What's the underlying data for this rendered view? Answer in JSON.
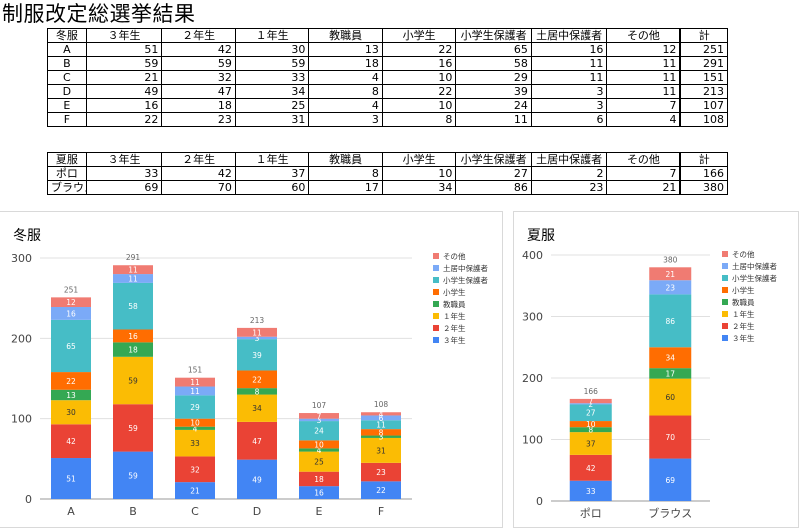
{
  "page_title": "制服改定総選挙結果",
  "winter_table": {
    "headers": [
      "冬服",
      "３年生",
      "２年生",
      "１年生",
      "教職員",
      "小学生",
      "小学生保護者",
      "土居中保護者",
      "その他",
      "計"
    ],
    "rows": [
      [
        "A",
        "51",
        "42",
        "30",
        "13",
        "22",
        "65",
        "16",
        "12",
        "251"
      ],
      [
        "B",
        "59",
        "59",
        "59",
        "18",
        "16",
        "58",
        "11",
        "11",
        "291"
      ],
      [
        "C",
        "21",
        "32",
        "33",
        "4",
        "10",
        "29",
        "11",
        "11",
        "151"
      ],
      [
        "D",
        "49",
        "47",
        "34",
        "8",
        "22",
        "39",
        "3",
        "11",
        "213"
      ],
      [
        "E",
        "16",
        "18",
        "25",
        "4",
        "10",
        "24",
        "3",
        "7",
        "107"
      ],
      [
        "F",
        "22",
        "23",
        "31",
        "3",
        "8",
        "11",
        "6",
        "4",
        "108"
      ]
    ]
  },
  "summer_table": {
    "headers": [
      "夏服",
      "３年生",
      "２年生",
      "１年生",
      "教職員",
      "小学生",
      "小学生保護者",
      "土居中保護者",
      "その他",
      "計"
    ],
    "rows": [
      [
        "ポロ",
        "33",
        "42",
        "37",
        "8",
        "10",
        "27",
        "2",
        "7",
        "166"
      ],
      [
        "ブラウス",
        "69",
        "70",
        "60",
        "17",
        "34",
        "86",
        "23",
        "21",
        "380"
      ]
    ]
  },
  "colors": {
    "series": [
      "#4285f4",
      "#ea4335",
      "#fbbc04",
      "#34a853",
      "#ff6d01",
      "#46bdc6",
      "#7baaf7",
      "#f07b72"
    ],
    "gridline": "#e0e0e0",
    "axis_text": "#444444",
    "total_text": "#666666"
  },
  "chart_data": [
    {
      "type": "bar",
      "stacked": true,
      "title": "冬服",
      "categories": [
        "A",
        "B",
        "C",
        "D",
        "E",
        "F"
      ],
      "ylim": [
        0,
        300
      ],
      "yticks": [
        0,
        100,
        200,
        300
      ],
      "grid": true,
      "legend_position": "right",
      "series": [
        {
          "name": "３年生",
          "values": [
            51,
            59,
            21,
            49,
            16,
            22
          ]
        },
        {
          "name": "２年生",
          "values": [
            42,
            59,
            32,
            47,
            18,
            23
          ]
        },
        {
          "name": "１年生",
          "values": [
            30,
            59,
            33,
            34,
            25,
            31
          ]
        },
        {
          "name": "教職員",
          "values": [
            13,
            18,
            4,
            8,
            4,
            3
          ]
        },
        {
          "name": "小学生",
          "values": [
            22,
            16,
            10,
            22,
            10,
            8
          ]
        },
        {
          "name": "小学生保護者",
          "values": [
            65,
            58,
            29,
            39,
            24,
            11
          ]
        },
        {
          "name": "土居中保護者",
          "values": [
            16,
            11,
            11,
            3,
            3,
            6
          ]
        },
        {
          "name": "その他",
          "values": [
            12,
            11,
            11,
            11,
            7,
            4
          ]
        }
      ],
      "totals": [
        251,
        291,
        151,
        213,
        107,
        108
      ]
    },
    {
      "type": "bar",
      "stacked": true,
      "title": "夏服",
      "categories": [
        "ポロ",
        "ブラウス"
      ],
      "ylim": [
        0,
        400
      ],
      "yticks": [
        0,
        100,
        200,
        300,
        400
      ],
      "grid": true,
      "legend_position": "right",
      "series": [
        {
          "name": "３年生",
          "values": [
            33,
            69
          ]
        },
        {
          "name": "２年生",
          "values": [
            42,
            70
          ]
        },
        {
          "name": "１年生",
          "values": [
            37,
            60
          ]
        },
        {
          "name": "教職員",
          "values": [
            8,
            17
          ]
        },
        {
          "name": "小学生",
          "values": [
            10,
            34
          ]
        },
        {
          "name": "小学生保護者",
          "values": [
            27,
            86
          ]
        },
        {
          "name": "土居中保護者",
          "values": [
            2,
            23
          ]
        },
        {
          "name": "その他",
          "values": [
            7,
            21
          ]
        }
      ],
      "totals": [
        166,
        380
      ]
    }
  ]
}
